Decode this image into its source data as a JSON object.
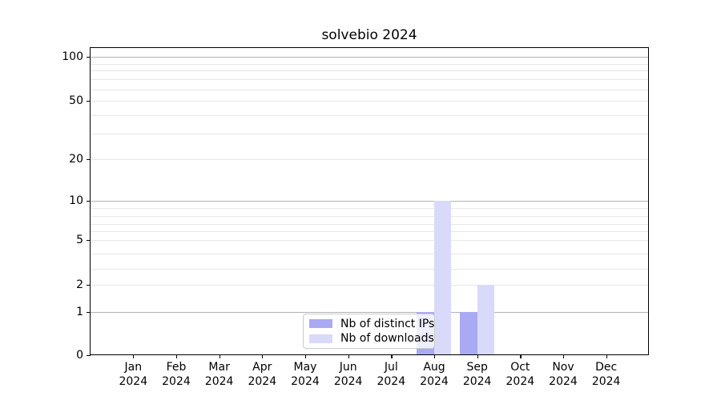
{
  "chart_data": {
    "type": "bar",
    "title": "solvebio 2024",
    "categories": [
      "Jan 2024",
      "Feb 2024",
      "Mar 2024",
      "Apr 2024",
      "May 2024",
      "Jun 2024",
      "Jul 2024",
      "Aug 2024",
      "Sep 2024",
      "Oct 2024",
      "Nov 2024",
      "Dec 2024"
    ],
    "series": [
      {
        "name": "Nb of distinct IPs",
        "color": "#a9a9f4",
        "values": [
          0,
          0,
          0,
          0,
          0,
          0,
          0,
          1,
          1,
          0,
          0,
          0
        ]
      },
      {
        "name": "Nb of downloads",
        "color": "#d9d9fa",
        "values": [
          0,
          0,
          0,
          0,
          0,
          0,
          0,
          10,
          2,
          0,
          0,
          0
        ]
      }
    ],
    "xlabel": "",
    "ylabel": "",
    "y_axis": {
      "scale": "symlog",
      "ticks": [
        0,
        1,
        2,
        5,
        10,
        20,
        50,
        100
      ],
      "minor_gridlines": [
        3,
        4,
        6,
        7,
        8,
        9,
        30,
        40,
        60,
        70,
        80,
        90
      ],
      "decade_lines": [
        1,
        10,
        100
      ],
      "ylim": [
        0,
        115
      ]
    },
    "grid": "horizontal",
    "legend_position": "lower center"
  },
  "colors": {
    "bar_distinct_ips": "#a9a9f4",
    "bar_downloads": "#d9d9fa",
    "grid_major": "#b3b3b3",
    "grid_minor": "#e7e7e7",
    "axis": "#000000",
    "legend_border": "#cbcbcb"
  }
}
